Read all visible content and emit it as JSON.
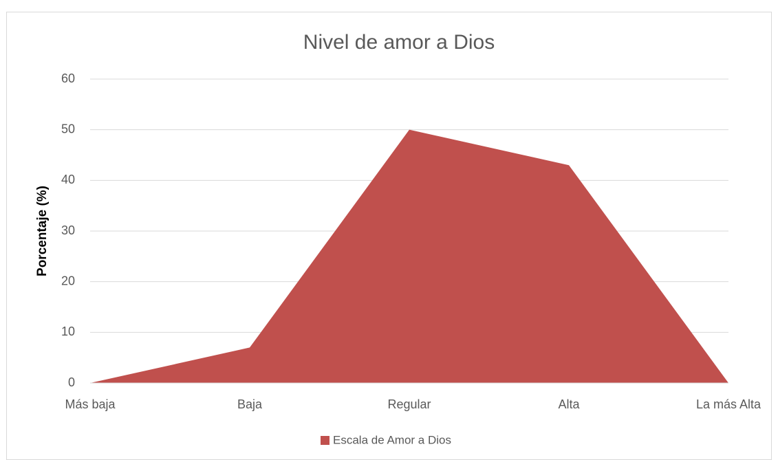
{
  "chart_data": {
    "type": "area",
    "title": "Nivel de amor a Dios",
    "ylabel": "Porcentaje (%)",
    "categories": [
      "Más baja",
      "Baja",
      "Regular",
      "Alta",
      "La más Alta"
    ],
    "series": [
      {
        "name": "Escala de Amor a Dios",
        "color": "#c0504d",
        "values": [
          0,
          7,
          50,
          43,
          0
        ]
      }
    ],
    "ylim": [
      0,
      60
    ],
    "yticks": [
      0,
      10,
      20,
      30,
      40,
      50,
      60
    ],
    "grid": true,
    "legend": "bottom"
  }
}
